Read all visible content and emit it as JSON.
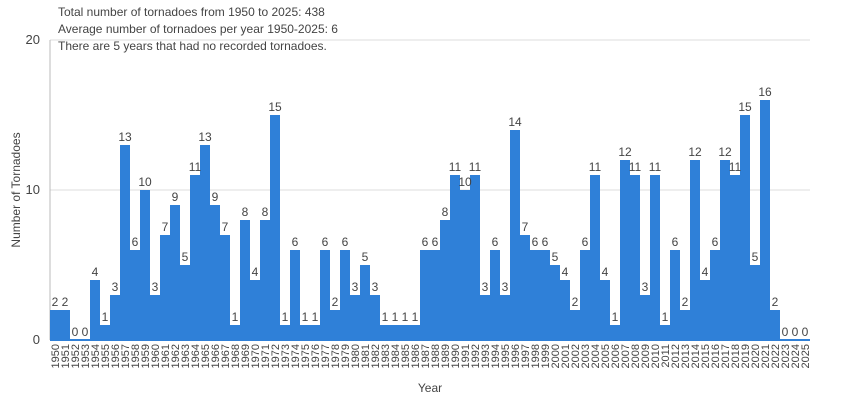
{
  "chart_data": {
    "type": "bar",
    "annotations": [
      "Total number of tornadoes from 1950 to 2025: 438",
      "Average number of tornadoes per year 1950-2025: 6",
      "There are 5 years that had no recorded tornadoes."
    ],
    "xlabel": "Year",
    "ylabel": "Number of Tornadoes",
    "categories": [
      "1950",
      "1951",
      "1952",
      "1953",
      "1954",
      "1955",
      "1956",
      "1957",
      "1958",
      "1959",
      "1960",
      "1961",
      "1962",
      "1963",
      "1964",
      "1965",
      "1966",
      "1967",
      "1968",
      "1969",
      "1970",
      "1971",
      "1972",
      "1973",
      "1974",
      "1975",
      "1976",
      "1977",
      "1978",
      "1979",
      "1980",
      "1981",
      "1982",
      "1983",
      "1984",
      "1985",
      "1986",
      "1987",
      "1988",
      "1989",
      "1990",
      "1991",
      "1992",
      "1993",
      "1994",
      "1995",
      "1996",
      "1997",
      "1998",
      "1999",
      "2000",
      "2001",
      "2002",
      "2003",
      "2004",
      "2005",
      "2006",
      "2007",
      "2008",
      "2009",
      "2010",
      "2011",
      "2012",
      "2013",
      "2014",
      "2015",
      "2016",
      "2017",
      "2018",
      "2019",
      "2020",
      "2021",
      "2022",
      "2023",
      "2024",
      "2025"
    ],
    "values": [
      2,
      2,
      0,
      0,
      4,
      1,
      3,
      13,
      6,
      10,
      3,
      7,
      9,
      5,
      11,
      13,
      9,
      7,
      1,
      8,
      4,
      8,
      15,
      1,
      6,
      1,
      1,
      6,
      2,
      6,
      3,
      5,
      3,
      1,
      1,
      1,
      1,
      6,
      6,
      8,
      11,
      10,
      11,
      3,
      6,
      3,
      14,
      7,
      6,
      6,
      5,
      4,
      2,
      6,
      11,
      4,
      1,
      12,
      11,
      3,
      11,
      1,
      6,
      2,
      12,
      4,
      6,
      12,
      11,
      15,
      5,
      16,
      2,
      0,
      0,
      0
    ],
    "color": "#2f80d8",
    "ylim": [
      0,
      20
    ],
    "yticks": [
      0,
      10,
      20
    ],
    "grid": true
  }
}
